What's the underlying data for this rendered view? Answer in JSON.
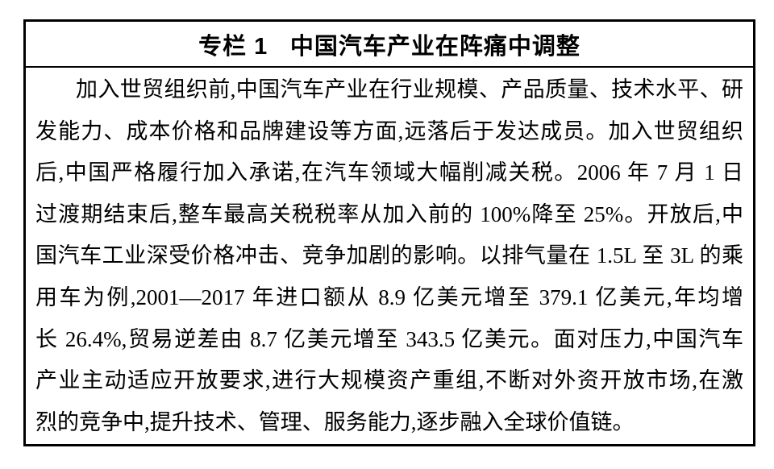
{
  "panel": {
    "title_prefix": "专栏 1",
    "title_text": "中国汽车产业在阵痛中调整",
    "border_color": "#000000",
    "text_color": "#000000",
    "background_color": "#ffffff"
  },
  "body": {
    "lines": [
      "加入世贸组织前,中国汽车产业在行业规模、产品质量、技术水平、研",
      "发能力、成本价格和品牌建设等方面,远落后于发达成员。加入世贸组织",
      "后,中国严格履行加入承诺,在汽车领域大幅削减关税。2006 年 7 月 1 日",
      "过渡期结束后,整车最高关税税率从加入前的 100%降至 25%。开放后,中",
      "国汽车工业深受价格冲击、竞争加剧的影响。以排气量在 1.5L 至 3L 的乘",
      "用车为例,2001—2017 年进口额从 8.9 亿美元增至 379.1 亿美元,年均增",
      "长 26.4%,贸易逆差由 8.7 亿美元增至 343.5 亿美元。面对压力,中国汽车",
      "产业主动适应开放要求,进行大规模资产重组,不断对外资开放市场,在激",
      "烈的竞争中,提升技术、管理、服务能力,逐步融入全球价值链。"
    ]
  }
}
